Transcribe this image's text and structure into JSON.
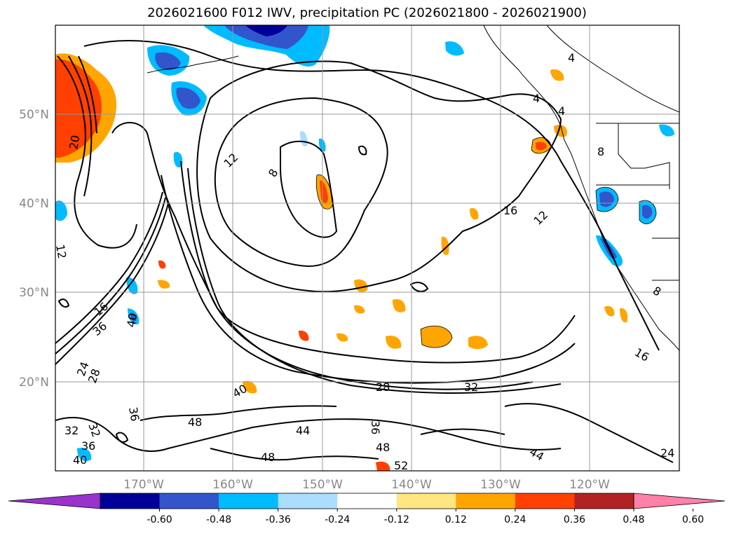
{
  "map": {
    "title": "2026021600 F012 IWV, precipitation PC (2026021800 - 2026021900)",
    "lat_labels": [
      "50°N",
      "40°N",
      "30°N",
      "20°N"
    ],
    "lon_labels": [
      "170°W",
      "160°W",
      "150°W",
      "140°W",
      "130°W",
      "120°W"
    ],
    "colorbar": {
      "ticks": [
        "-0.60",
        "-0.48",
        "-0.36",
        "-0.24",
        "-0.12",
        "0.12",
        "0.24",
        "0.36",
        "0.48",
        "0.60"
      ],
      "colors": [
        "#9933cc",
        "#000099",
        "#3355cc",
        "#00bbff",
        "#aaddff",
        "#ffffff",
        "#ffe680",
        "#ffa500",
        "#ff4000",
        "#b22222",
        "#ff80a8"
      ]
    },
    "contour_labels": [
      "4",
      "4",
      "4",
      "8",
      "12",
      "16",
      "12",
      "8",
      "20",
      "16",
      "36",
      "40",
      "24",
      "28",
      "32",
      "36",
      "40",
      "12",
      "28",
      "32",
      "44",
      "48",
      "40",
      "48",
      "48",
      "52",
      "44",
      "24",
      "16",
      "8",
      "32",
      "36",
      "36"
    ]
  }
}
